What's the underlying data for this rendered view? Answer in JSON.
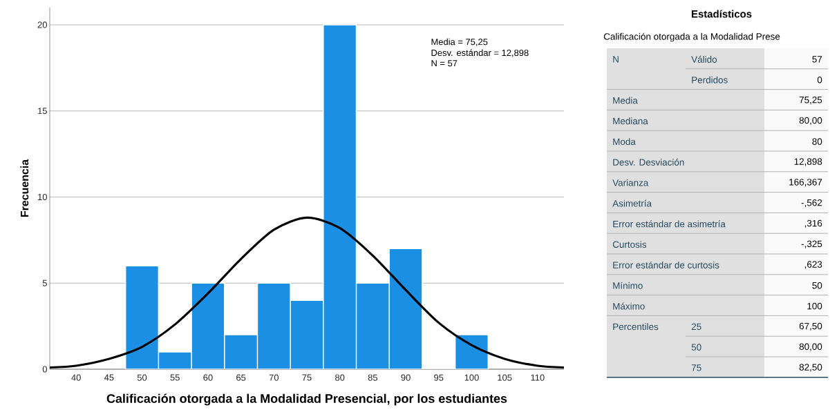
{
  "chart_data": [
    {
      "type": "histogram",
      "xlabel": "Calificación otorgada a la Modalidad Presencial, por los estudiantes",
      "ylabel": "Frecuencia",
      "bins": [
        47.5,
        52.5,
        57.5,
        62.5,
        67.5,
        72.5,
        77.5,
        82.5,
        87.5,
        92.5,
        97.5,
        102.5
      ],
      "values": [
        6,
        1,
        5,
        2,
        5,
        4,
        20,
        5,
        7,
        0,
        2
      ],
      "color": "#1a8fe3",
      "series": [
        {
          "type": "line",
          "color": "#000000",
          "x": [
            36,
            40,
            45,
            50,
            55,
            60,
            65,
            70,
            75,
            80,
            85,
            90,
            95,
            100,
            105,
            110,
            114
          ],
          "values": [
            0.1,
            0.2,
            0.6,
            1.3,
            2.6,
            4.4,
            6.4,
            8.1,
            8.8,
            8.2,
            6.6,
            4.6,
            2.7,
            1.4,
            0.6,
            0.2,
            0.1
          ]
        }
      ],
      "xlim": [
        36,
        114
      ],
      "ylim": [
        0,
        21
      ],
      "xticks": [
        40,
        45,
        50,
        55,
        60,
        65,
        70,
        75,
        80,
        85,
        90,
        95,
        100,
        105,
        110
      ],
      "yticks": [
        0,
        5,
        10,
        15,
        20
      ],
      "grid": "y",
      "annotations": [
        "Media = 75,25",
        "Desv. estándar = 12,898",
        "N = 57"
      ]
    },
    {
      "type": "other",
      "title": "Estadísticos",
      "subtitle": "Calificación otorgada a la Modalidad Prese",
      "annotations": [
        "N",
        "Válido",
        "57",
        "Perdidos",
        "0",
        "Media",
        "75,25",
        "Mediana",
        "80,00",
        "Moda",
        "80",
        "Desv. Desviación",
        "12,898",
        "Varianza",
        "166,367",
        "Asimetría",
        "-,562",
        "Error estándar de asimetría",
        ",316",
        "Curtosis",
        "-,325",
        "Error estándar de curtosis",
        ",623",
        "Mínimo",
        "50",
        "Máximo",
        "100",
        "Percentiles",
        "25",
        "67,50",
        "50",
        "80,00",
        "75",
        "82,50"
      ]
    }
  ]
}
